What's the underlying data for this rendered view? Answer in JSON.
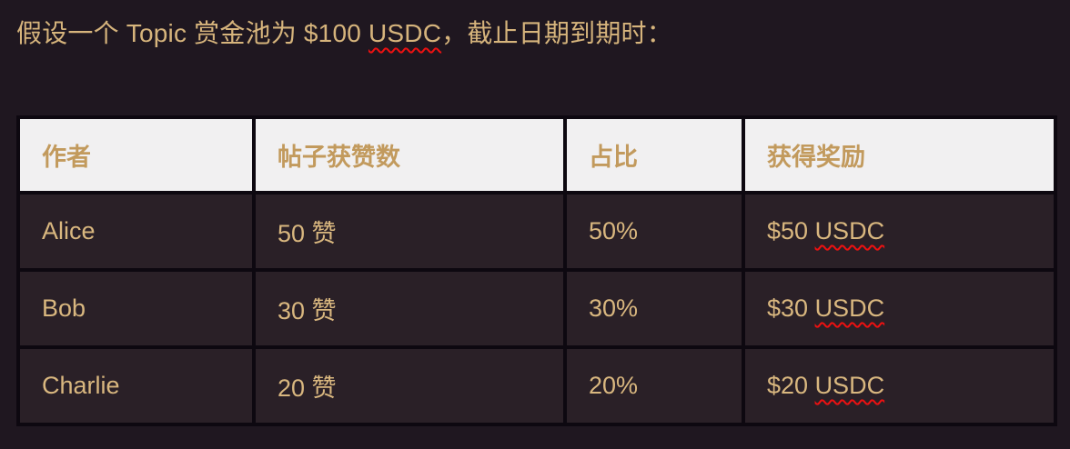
{
  "page": {
    "background_color": "#1f1720",
    "cell_background_color": "#2a2027",
    "header_background_color": "#f1f0f1",
    "border_color": "#0d0810",
    "accent_gold": "#d6b47c",
    "header_text_gold": "#c29a5d",
    "squiggle_color": "#ed1111"
  },
  "heading": {
    "prefix": "假设一个 Topic 赏金池为 $100 ",
    "misspelled": "USDC",
    "suffix": "，截止日期到期时："
  },
  "table": {
    "headers": [
      "作者",
      "帖子获赞数",
      "占比",
      "获得奖励"
    ],
    "rows": [
      {
        "author": "Alice",
        "likes": "50 赞",
        "share": "50%",
        "reward_amount": "$50 ",
        "reward_currency": "USDC"
      },
      {
        "author": "Bob",
        "likes": "30 赞",
        "share": "30%",
        "reward_amount": "$30 ",
        "reward_currency": "USDC"
      },
      {
        "author": "Charlie",
        "likes": "20 赞",
        "share": "20%",
        "reward_amount": "$20 ",
        "reward_currency": "USDC"
      }
    ]
  }
}
